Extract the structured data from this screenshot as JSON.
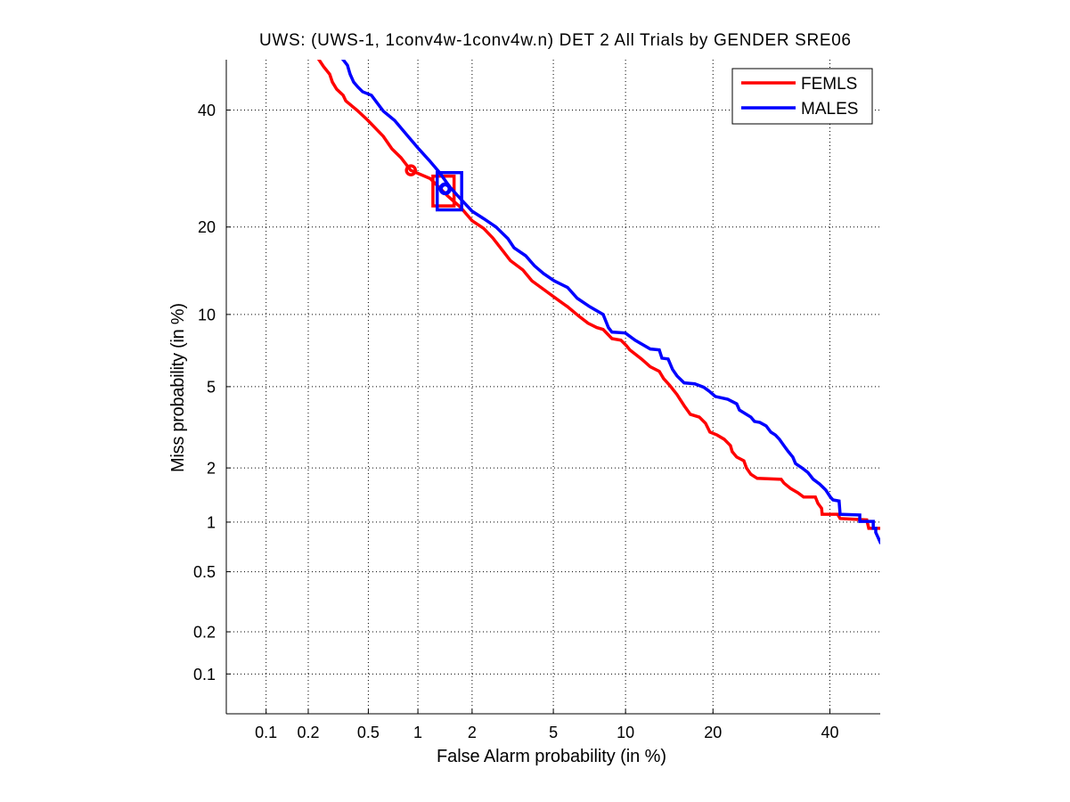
{
  "chart_data": {
    "type": "line",
    "axis_scale": "probit",
    "title": "UWS: (UWS-1, 1conv4w-1conv4w.n) DET 2 All Trials by GENDER SRE06",
    "xlabel": "False Alarm probability (in %)",
    "ylabel": "Miss probability (in %)",
    "xlim": [
      0.05,
      50
    ],
    "ylim": [
      0.05,
      50
    ],
    "xticks": [
      0.1,
      0.2,
      0.5,
      1,
      2,
      5,
      10,
      20,
      40
    ],
    "xtick_labels": [
      "0.1",
      "0.2",
      "0.5",
      "1",
      "2",
      "5",
      "10",
      "20",
      "40"
    ],
    "yticks": [
      0.1,
      0.2,
      0.5,
      1,
      2,
      5,
      10,
      20,
      40
    ],
    "ytick_labels": [
      "0.1",
      "0.2",
      "0.5",
      "1",
      "2",
      "5",
      "10",
      "20",
      "40"
    ],
    "grid": true,
    "legend": {
      "position": "top-right"
    },
    "series": [
      {
        "name": "FEMLS",
        "color": "#ff0000",
        "x": [
          0.237,
          0.255,
          0.28,
          0.292,
          0.312,
          0.344,
          0.358,
          0.43,
          0.497,
          0.62,
          0.7,
          0.794,
          0.907,
          1.177,
          1.482,
          1.735,
          2.0,
          2.3,
          2.56,
          2.84,
          3.14,
          3.61,
          3.98,
          4.64,
          5.28,
          5.78,
          6.48,
          7.07,
          7.69,
          8.16,
          8.85,
          9.6,
          10.06,
          10.38,
          11.48,
          12.36,
          13.31,
          13.79,
          14.49,
          15.33,
          16.19,
          16.97,
          18.13,
          18.97,
          19.57,
          20.59,
          21.62,
          22.55,
          22.82,
          23.51,
          24.63,
          25.04,
          25.75,
          26.79,
          30.9,
          31.4,
          32.6,
          33.9,
          35.0,
          37.2,
          37.7,
          38.4,
          38.5,
          41.5,
          42.0,
          47.3,
          47.7,
          50
        ],
        "y": [
          50,
          48.6,
          47.1,
          45.5,
          44.1,
          42.9,
          41.8,
          39.8,
          38.0,
          35.0,
          32.7,
          31.1,
          28.9,
          27.5,
          24.6,
          22.9,
          20.9,
          19.8,
          18.5,
          17.0,
          15.6,
          14.5,
          13.3,
          12.2,
          11.3,
          10.7,
          9.84,
          9.25,
          8.89,
          8.74,
          8.03,
          7.91,
          7.53,
          7.22,
          6.61,
          6.12,
          5.85,
          5.43,
          5.06,
          4.6,
          4.09,
          3.72,
          3.61,
          3.37,
          3.05,
          2.95,
          2.81,
          2.61,
          2.43,
          2.28,
          2.18,
          2.0,
          1.85,
          1.76,
          1.74,
          1.66,
          1.55,
          1.47,
          1.39,
          1.39,
          1.28,
          1.2,
          1.11,
          1.11,
          1.05,
          1.03,
          0.92,
          0.92
        ],
        "circle_marker": {
          "x": 0.91,
          "y": 28.9
        },
        "box_marker": {
          "x": [
            1.22,
            1.6
          ],
          "y": [
            23.1,
            27.9
          ]
        }
      },
      {
        "name": "MALES",
        "color": "#0000ff",
        "x": [
          0.344,
          0.367,
          0.382,
          0.403,
          0.43,
          0.46,
          0.523,
          0.62,
          0.727,
          0.864,
          1.01,
          1.164,
          1.323,
          1.516,
          1.735,
          2.0,
          2.3,
          2.66,
          3.05,
          3.27,
          3.72,
          4.09,
          4.51,
          5.04,
          5.78,
          6.37,
          7.19,
          8.16,
          8.57,
          8.85,
          9.98,
          10.87,
          12.36,
          13.31,
          13.6,
          14.29,
          14.8,
          15.33,
          16.19,
          17.54,
          18.73,
          19.57,
          20.33,
          22.15,
          23.51,
          23.93,
          25.75,
          26.34,
          27.24,
          28.3,
          29.1,
          29.9,
          30.6,
          31.4,
          32.2,
          33.0,
          33.5,
          34.7,
          35.8,
          36.8,
          38.0,
          39.2,
          40.1,
          40.6,
          41.8,
          42.0,
          45.9,
          45.9,
          48.6,
          48.6,
          49.1,
          49.1,
          49.5,
          50
        ],
        "y": [
          50,
          48.9,
          47.1,
          45.5,
          44.5,
          43.6,
          42.9,
          39.8,
          38.0,
          35.2,
          32.7,
          30.6,
          28.6,
          26.1,
          24.2,
          22.3,
          21.2,
          20.0,
          18.4,
          17.2,
          16.2,
          15.0,
          14.1,
          13.3,
          12.6,
          11.5,
          10.7,
          10.0,
          8.89,
          8.53,
          8.46,
          7.91,
          7.28,
          7.22,
          6.66,
          6.61,
          5.96,
          5.58,
          5.2,
          5.15,
          4.97,
          4.74,
          4.51,
          4.38,
          4.17,
          3.9,
          3.61,
          3.44,
          3.4,
          3.27,
          3.05,
          2.95,
          2.81,
          2.61,
          2.43,
          2.28,
          2.11,
          2.0,
          1.89,
          1.74,
          1.64,
          1.52,
          1.39,
          1.34,
          1.32,
          1.11,
          1.1,
          1.01,
          1.01,
          0.92,
          0.92,
          0.87,
          0.82,
          0.76
        ],
        "circle_marker": {
          "x": 1.43,
          "y": 25.8
        },
        "box_marker": {
          "x": [
            1.29,
            1.76
          ],
          "y": [
            22.5,
            28.5
          ]
        }
      }
    ]
  }
}
